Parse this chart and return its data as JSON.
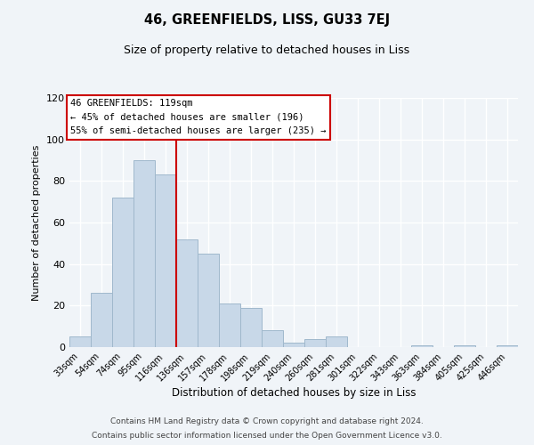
{
  "title": "46, GREENFIELDS, LISS, GU33 7EJ",
  "subtitle": "Size of property relative to detached houses in Liss",
  "xlabel": "Distribution of detached houses by size in Liss",
  "ylabel": "Number of detached properties",
  "bar_labels": [
    "33sqm",
    "54sqm",
    "74sqm",
    "95sqm",
    "116sqm",
    "136sqm",
    "157sqm",
    "178sqm",
    "198sqm",
    "219sqm",
    "240sqm",
    "260sqm",
    "281sqm",
    "301sqm",
    "322sqm",
    "343sqm",
    "363sqm",
    "384sqm",
    "405sqm",
    "425sqm",
    "446sqm"
  ],
  "bar_values": [
    5,
    26,
    72,
    90,
    83,
    52,
    45,
    21,
    19,
    8,
    2,
    4,
    5,
    0,
    0,
    0,
    1,
    0,
    1,
    0,
    1
  ],
  "bar_color": "#c8d8e8",
  "bar_edgecolor": "#a0b8cc",
  "ylim": [
    0,
    120
  ],
  "yticks": [
    0,
    20,
    40,
    60,
    80,
    100,
    120
  ],
  "vline_color": "#cc0000",
  "annotation_title": "46 GREENFIELDS: 119sqm",
  "annotation_line1": "← 45% of detached houses are smaller (196)",
  "annotation_line2": "55% of semi-detached houses are larger (235) →",
  "annotation_box_color": "#ffffff",
  "annotation_box_edgecolor": "#cc0000",
  "footer1": "Contains HM Land Registry data © Crown copyright and database right 2024.",
  "footer2": "Contains public sector information licensed under the Open Government Licence v3.0.",
  "background_color": "#f0f4f8",
  "plot_background": "#f0f4f8",
  "grid_color": "#ffffff"
}
